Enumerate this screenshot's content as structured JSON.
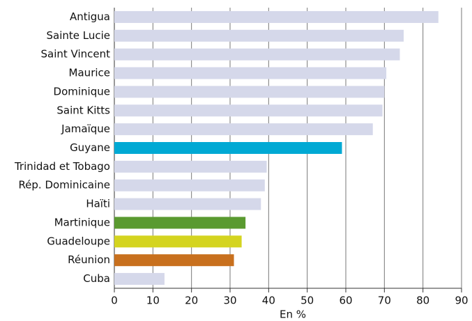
{
  "chart_data": {
    "type": "bar",
    "orientation": "horizontal",
    "categories": [
      "Antigua",
      "Sainte Lucie",
      "Saint Vincent",
      "Maurice",
      "Dominique",
      "Saint Kitts",
      "Jamaïque",
      "Guyane",
      "Trinidad et Tobago",
      "Rép. Dominicaine",
      "Haïti",
      "Martinique",
      "Guadeloupe",
      "Réunion",
      "Cuba"
    ],
    "values": [
      84,
      75,
      74,
      70.5,
      70,
      69.5,
      67,
      59,
      39.5,
      39,
      38,
      34,
      33,
      31,
      13
    ],
    "colors": [
      "#d5d8ea",
      "#d5d8ea",
      "#d5d8ea",
      "#d5d8ea",
      "#d5d8ea",
      "#d5d8ea",
      "#d5d8ea",
      "#00a9d4",
      "#d5d8ea",
      "#d5d8ea",
      "#d5d8ea",
      "#5a9a30",
      "#d4d420",
      "#c8701e",
      "#d5d8ea"
    ],
    "x_label": "En %",
    "xlim": [
      0,
      90
    ],
    "xticks": [
      0,
      10,
      20,
      30,
      40,
      50,
      60,
      70,
      80,
      90
    ],
    "grid": true
  }
}
